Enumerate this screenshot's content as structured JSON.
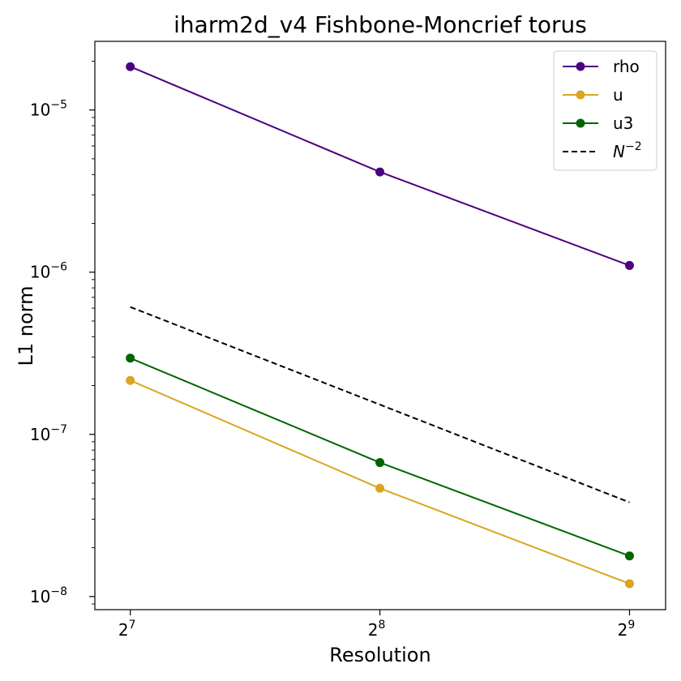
{
  "chart_data": {
    "type": "line",
    "title": "iharm2d_v4 Fishbone-Moncrief torus",
    "xlabel": "Resolution",
    "ylabel": "L1 norm",
    "xscale": "log2",
    "yscale": "log10",
    "x": [
      128,
      256,
      512
    ],
    "x_tick_labels": [
      {
        "base": "2",
        "exp": "7"
      },
      {
        "base": "2",
        "exp": "8"
      },
      {
        "base": "2",
        "exp": "9"
      }
    ],
    "y_tick_labels": [
      {
        "base": "10",
        "exp": "−5"
      },
      {
        "base": "10",
        "exp": "−6"
      },
      {
        "base": "10",
        "exp": "−7"
      },
      {
        "base": "10",
        "exp": "−8"
      }
    ],
    "xlim": [
      116,
      566
    ],
    "ylim": [
      8.3e-09,
      2.65e-05
    ],
    "legend_position": "top-right",
    "grid": false,
    "series": [
      {
        "name": "rho",
        "color": "#4b0082",
        "marker": "circle",
        "linestyle": "solid",
        "values": [
          1.85e-05,
          4.15e-06,
          1.1e-06
        ]
      },
      {
        "name": "u",
        "color": "#daa520",
        "marker": "circle",
        "linestyle": "solid",
        "values": [
          2.15e-07,
          4.65e-08,
          1.2e-08
        ]
      },
      {
        "name": "u3",
        "color": "#006400",
        "marker": "circle",
        "linestyle": "solid",
        "values": [
          2.95e-07,
          6.7e-08,
          1.78e-08
        ]
      },
      {
        "name_base": "N",
        "name_exp": "−2",
        "color": "#000000",
        "marker": "none",
        "linestyle": "dashed",
        "values": [
          6.1e-07,
          1.525e-07,
          3.81e-08
        ]
      }
    ]
  }
}
